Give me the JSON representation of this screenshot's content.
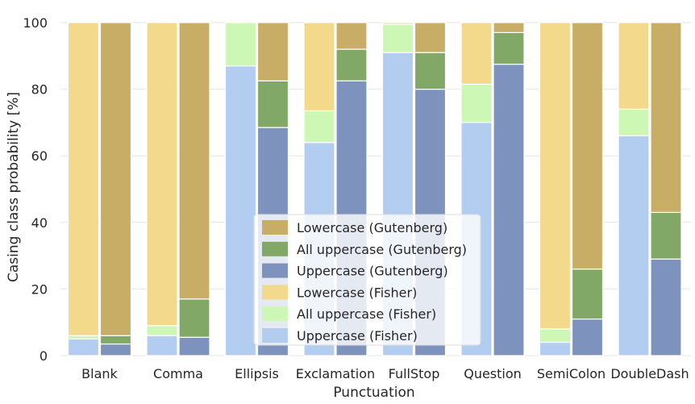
{
  "chart_data": {
    "type": "bar",
    "stacked": true,
    "xlabel": "Punctuation",
    "ylabel": "Casing class probability [%]",
    "ylim": [
      0,
      100
    ],
    "yticks": [
      0,
      20,
      40,
      60,
      80,
      100
    ],
    "grid": true,
    "legend_position": "center-bottom",
    "categories": [
      "Blank",
      "Comma",
      "Ellipsis",
      "Exclamation",
      "FullStop",
      "Question",
      "SemiColon",
      "DoubleDash"
    ],
    "groups": [
      {
        "name": "Fisher",
        "series": [
          {
            "name": "Uppercase (Fisher)",
            "color": "#b3cdf0",
            "values": [
              5,
              6,
              87,
              64,
              91,
              70,
              4,
              66
            ]
          },
          {
            "name": "All uppercase (Fisher)",
            "color": "#ccf7b4",
            "values": [
              1,
              3,
              13,
              9.5,
              8.5,
              11.5,
              4,
              8
            ]
          },
          {
            "name": "Lowercase (Fisher)",
            "color": "#f2d98c",
            "values": [
              94,
              91,
              0,
              26.5,
              0.5,
              18.5,
              92,
              26
            ]
          }
        ]
      },
      {
        "name": "Gutenberg",
        "series": [
          {
            "name": "Uppercase (Gutenberg)",
            "color": "#7d93bd",
            "values": [
              3.5,
              5.5,
              68.5,
              82.5,
              80,
              87.5,
              11,
              29
            ]
          },
          {
            "name": "All uppercase (Gutenberg)",
            "color": "#82a867",
            "values": [
              2.5,
              11.5,
              14,
              9.5,
              11,
              9.5,
              15,
              14
            ]
          },
          {
            "name": "Lowercase (Gutenberg)",
            "color": "#c8ad66",
            "values": [
              94,
              83,
              17.5,
              8,
              9,
              3,
              74,
              57
            ]
          }
        ]
      }
    ],
    "legend": [
      {
        "label": "Lowercase (Gutenberg)",
        "color": "#c8ad66"
      },
      {
        "label": "All uppercase (Gutenberg)",
        "color": "#82a867"
      },
      {
        "label": "Uppercase (Gutenberg)",
        "color": "#7d93bd"
      },
      {
        "label": "Lowercase (Fisher)",
        "color": "#f2d98c"
      },
      {
        "label": "All uppercase (Fisher)",
        "color": "#ccf7b4"
      },
      {
        "label": "Uppercase (Fisher)",
        "color": "#b3cdf0"
      }
    ]
  }
}
